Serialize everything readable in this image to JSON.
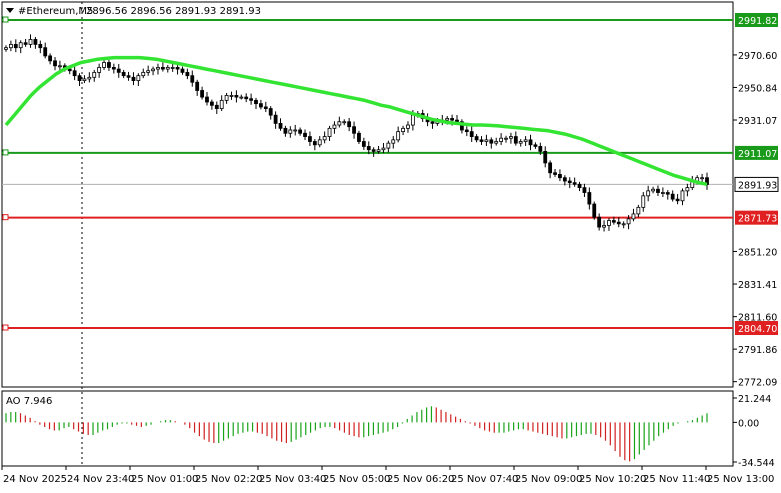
{
  "header": {
    "symbol": "#Ethereum,M5",
    "ohlc": "2896.56 2896.56 2891.93 2891.93"
  },
  "colors": {
    "background": "#ffffff",
    "grid": "#c8c8c8",
    "axis": "#000000",
    "candle": "#000000",
    "ma_line": "#33e433",
    "level_green": "#1a9a1a",
    "level_red": "#e02020",
    "ao_up": "#19a319",
    "ao_down": "#d12020",
    "price_tag_bg": "#ffffff"
  },
  "chart_data": [
    {
      "type": "candlestick",
      "title": "#Ethereum,M5",
      "ylim": [
        2772,
        3012
      ],
      "y_ticks": [
        "2991.82",
        "2970.60",
        "2950.84",
        "2931.07",
        "2911.07",
        "2891.93",
        "2871.73",
        "2851.20",
        "2831.41",
        "2811.60",
        "2804.70",
        "2791.86",
        "2772.09"
      ],
      "x_ticks": [
        "24 Nov 2025",
        "24 Nov 23:40",
        "25 Nov 01:00",
        "25 Nov 02:20",
        "25 Nov 03:40",
        "25 Nov 05:00",
        "25 Nov 06:20",
        "25 Nov 07:40",
        "25 Nov 09:00",
        "25 Nov 10:20",
        "25 Nov 11:40",
        "25 Nov 13:00"
      ],
      "last_price": 2891.93,
      "levels": [
        {
          "label": "2991.82",
          "value": 2991.82,
          "color": "green"
        },
        {
          "label": "2911.07",
          "value": 2911.07,
          "color": "green"
        },
        {
          "label": "2871.73",
          "value": 2871.73,
          "color": "red"
        },
        {
          "label": "2804.70",
          "value": 2804.7,
          "color": "red"
        }
      ],
      "closes": [
        2975,
        2977,
        2975,
        2978,
        2977,
        2980,
        2977,
        2975,
        2970,
        2967,
        2964,
        2964,
        2962,
        2961,
        2958,
        2955,
        2956,
        2957,
        2960,
        2963,
        2966,
        2963,
        2962,
        2960,
        2958,
        2957,
        2955,
        2958,
        2960,
        2961,
        2962,
        2963,
        2962,
        2963,
        2963,
        2962,
        2960,
        2958,
        2954,
        2949,
        2945,
        2942,
        2940,
        2938,
        2943,
        2946,
        2946,
        2945,
        2945,
        2944,
        2943,
        2941,
        2939,
        2938,
        2934,
        2929,
        2926,
        2923,
        2925,
        2925,
        2923,
        2921,
        2918,
        2916,
        2919,
        2921,
        2926,
        2928,
        2930,
        2930,
        2927,
        2923,
        2918,
        2915,
        2913,
        2912,
        2913,
        2914,
        2917,
        2919,
        2924,
        2926,
        2928,
        2934,
        2935,
        2932,
        2930,
        2929,
        2930,
        2931,
        2932,
        2931,
        2930,
        2925,
        2924,
        2921,
        2919,
        2918,
        2919,
        2917,
        2918,
        2920,
        2920,
        2921,
        2917,
        2918,
        2919,
        2916,
        2915,
        2912,
        2905,
        2899,
        2898,
        2896,
        2894,
        2893,
        2892,
        2890,
        2887,
        2880,
        2872,
        2866,
        2867,
        2870,
        2869,
        2868,
        2868,
        2871,
        2874,
        2878,
        2885,
        2888,
        2889,
        2887,
        2887,
        2886,
        2883,
        2882,
        2888,
        2890,
        2894,
        2896,
        2896,
        2891.93
      ],
      "ma": [
        2928,
        2934,
        2940,
        2946,
        2951,
        2955,
        2959,
        2962,
        2964,
        2966,
        2967,
        2968,
        2968.5,
        2969,
        2969,
        2969,
        2969,
        2968.5,
        2968,
        2967,
        2966,
        2965,
        2964,
        2963,
        2962,
        2961,
        2960,
        2959,
        2958,
        2957,
        2956,
        2955,
        2954,
        2953,
        2952,
        2951,
        2950,
        2949,
        2948,
        2947,
        2946,
        2945,
        2944,
        2943,
        2941.5,
        2940,
        2939,
        2937.5,
        2936,
        2934.5,
        2933,
        2931.5,
        2930.5,
        2929.5,
        2929,
        2928.5,
        2928,
        2928,
        2927.8,
        2927.5,
        2927,
        2926.5,
        2926,
        2925.5,
        2925,
        2924.5,
        2923.5,
        2922.5,
        2921,
        2919.5,
        2917.5,
        2915.5,
        2913.5,
        2911.5,
        2909.5,
        2907.5,
        2905.5,
        2903.5,
        2901.5,
        2899.5,
        2897.5,
        2896,
        2894.5,
        2893,
        2892
      ]
    },
    {
      "type": "bar",
      "title": "AO 7.946",
      "ylim": [
        -34.544,
        21.244
      ],
      "y_ticks": [
        "21.244",
        "0.00",
        "-34.544"
      ],
      "values": [
        8,
        9,
        9,
        8,
        6,
        4,
        1,
        -2,
        -4,
        -6,
        -7,
        -7,
        -5,
        -4,
        -6,
        -8,
        -10,
        -11,
        -11,
        -9,
        -7,
        -6,
        -4,
        -2,
        -1,
        -1,
        -2,
        -3,
        -4,
        -3,
        -2,
        0,
        1,
        2,
        2,
        1,
        0,
        -2,
        -5,
        -9,
        -12,
        -15,
        -17,
        -18,
        -18,
        -16,
        -14,
        -12,
        -10,
        -9,
        -8,
        -8,
        -9,
        -10,
        -12,
        -14,
        -16,
        -17,
        -18,
        -17,
        -15,
        -13,
        -11,
        -9,
        -7,
        -5,
        -4,
        -4,
        -5,
        -7,
        -9,
        -11,
        -12,
        -13,
        -13,
        -12,
        -11,
        -10,
        -9,
        -8,
        -6,
        -4,
        -1,
        3,
        6,
        9,
        11,
        13,
        14,
        13,
        11,
        9,
        7,
        5,
        3,
        1,
        -1,
        -3,
        -5,
        -7,
        -8,
        -9,
        -9,
        -9,
        -8,
        -7,
        -6,
        -6,
        -7,
        -8,
        -9,
        -10,
        -11,
        -12,
        -13,
        -14,
        -14,
        -13,
        -12,
        -11,
        -10,
        -10,
        -11,
        -13,
        -16,
        -20,
        -25,
        -30,
        -33,
        -34,
        -32,
        -28,
        -24,
        -20,
        -16,
        -12,
        -9,
        -6,
        -3,
        -1,
        0,
        1,
        2,
        4,
        6,
        7.946
      ]
    }
  ]
}
